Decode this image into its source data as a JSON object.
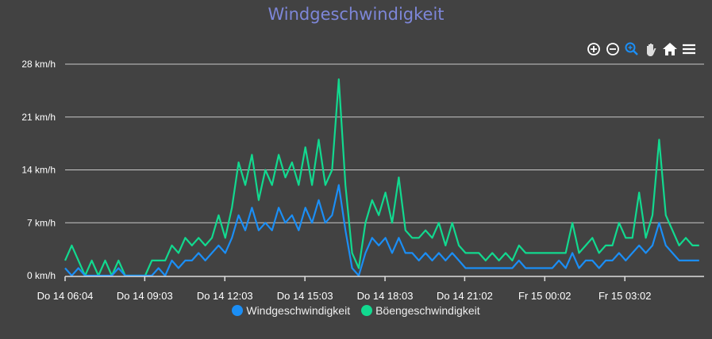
{
  "title": "Windgeschwindigkeit",
  "toolbar": [
    "zoom-in-icon",
    "zoom-out-icon",
    "zoom-select-icon",
    "pan-hand-icon",
    "home-reset-icon",
    "menu-icon"
  ],
  "colors": {
    "wind": "#1b8ef5",
    "gust": "#12d98f",
    "title": "#7d86d8",
    "background": "#424242"
  },
  "chart_data": {
    "type": "line",
    "title": "Windgeschwindigkeit",
    "ylim": [
      0,
      28
    ],
    "yticks": [
      "0 km/h",
      "7 km/h",
      "14 km/h",
      "21 km/h",
      "28 km/h"
    ],
    "ytick_values": [
      0,
      7,
      14,
      21,
      28
    ],
    "xticks": [
      "Do 14 06:04",
      "Do 14 09:03",
      "Do 14 12:03",
      "Do 14 15:03",
      "Do 14 18:03",
      "Do 14 21:02",
      "Fr 15 00:02",
      "Fr 15 03:02"
    ],
    "grid": true,
    "legend": "bottom",
    "x": [
      "Do 14 06:04",
      "Do 14 06:19",
      "Do 14 06:34",
      "Do 14 06:49",
      "Do 14 07:04",
      "Do 14 07:19",
      "Do 14 07:34",
      "Do 14 07:49",
      "Do 14 08:04",
      "Do 14 08:19",
      "Do 14 08:34",
      "Do 14 08:49",
      "Do 14 09:04",
      "Do 14 09:19",
      "Do 14 09:34",
      "Do 14 09:49",
      "Do 14 10:04",
      "Do 14 10:19",
      "Do 14 10:34",
      "Do 14 10:49",
      "Do 14 11:04",
      "Do 14 11:19",
      "Do 14 11:34",
      "Do 14 11:49",
      "Do 14 12:04",
      "Do 14 12:19",
      "Do 14 12:34",
      "Do 14 12:49",
      "Do 14 13:04",
      "Do 14 13:19",
      "Do 14 13:34",
      "Do 14 13:49",
      "Do 14 14:04",
      "Do 14 14:19",
      "Do 14 14:34",
      "Do 14 14:49",
      "Do 14 15:04",
      "Do 14 15:19",
      "Do 14 15:34",
      "Do 14 15:49",
      "Do 14 16:04",
      "Do 14 16:19",
      "Do 14 16:34",
      "Do 14 16:49",
      "Do 14 17:04",
      "Do 14 17:19",
      "Do 14 17:34",
      "Do 14 17:49",
      "Do 14 18:04",
      "Do 14 18:19",
      "Do 14 18:34",
      "Do 14 18:49",
      "Do 14 19:04",
      "Do 14 19:19",
      "Do 14 19:34",
      "Do 14 19:49",
      "Do 14 20:04",
      "Do 14 20:19",
      "Do 14 20:34",
      "Do 14 20:49",
      "Do 14 21:04",
      "Do 14 21:19",
      "Do 14 21:34",
      "Do 14 21:49",
      "Do 14 22:04",
      "Do 14 22:19",
      "Do 14 22:34",
      "Do 14 22:49",
      "Do 14 23:04",
      "Do 14 23:19",
      "Do 14 23:34",
      "Do 14 23:49",
      "Fr 15 00:04",
      "Fr 15 00:19",
      "Fr 15 00:34",
      "Fr 15 00:49",
      "Fr 15 01:04",
      "Fr 15 01:19",
      "Fr 15 01:34",
      "Fr 15 01:49",
      "Fr 15 02:04",
      "Fr 15 02:19",
      "Fr 15 02:34",
      "Fr 15 02:49",
      "Fr 15 03:04",
      "Fr 15 03:19",
      "Fr 15 03:34",
      "Fr 15 03:49",
      "Fr 15 04:04",
      "Fr 15 04:19",
      "Fr 15 04:34",
      "Fr 15 04:49",
      "Fr 15 05:04",
      "Fr 15 05:19",
      "Fr 15 05:34",
      "Fr 15 05:49"
    ],
    "series": [
      {
        "name": "Windgeschwindigkeit",
        "color": "#1b8ef5",
        "values": [
          1,
          0,
          1,
          0,
          0,
          0,
          0,
          0,
          1,
          0,
          0,
          0,
          0,
          0,
          1,
          0,
          2,
          1,
          2,
          2,
          3,
          2,
          3,
          4,
          3,
          5,
          8,
          6,
          9,
          6,
          7,
          6,
          9,
          7,
          8,
          6,
          9,
          7,
          10,
          7,
          8,
          12,
          6,
          1,
          0,
          3,
          5,
          4,
          5,
          3,
          5,
          3,
          3,
          2,
          3,
          2,
          3,
          2,
          3,
          2,
          1,
          1,
          1,
          1,
          1,
          1,
          1,
          1,
          2,
          1,
          1,
          1,
          1,
          1,
          2,
          1,
          3,
          1,
          2,
          2,
          1,
          2,
          2,
          3,
          2,
          3,
          4,
          3,
          4,
          7,
          4,
          3,
          2,
          2,
          2,
          2
        ]
      },
      {
        "name": "Böengeschwindigkeit",
        "color": "#12d98f",
        "values": [
          2,
          4,
          2,
          0,
          2,
          0,
          2,
          0,
          2,
          0,
          0,
          0,
          0,
          2,
          2,
          2,
          4,
          3,
          5,
          4,
          5,
          4,
          5,
          8,
          5,
          9,
          15,
          12,
          16,
          10,
          14,
          12,
          16,
          13,
          15,
          12,
          17,
          12,
          18,
          12,
          14,
          26,
          12,
          3,
          1,
          7,
          10,
          8,
          11,
          7,
          13,
          6,
          5,
          5,
          6,
          5,
          7,
          4,
          7,
          4,
          3,
          3,
          3,
          2,
          3,
          2,
          3,
          2,
          4,
          3,
          3,
          3,
          3,
          3,
          3,
          3,
          7,
          3,
          4,
          5,
          3,
          4,
          4,
          7,
          5,
          5,
          11,
          5,
          8,
          18,
          8,
          6,
          4,
          5,
          4,
          4
        ]
      }
    ]
  }
}
